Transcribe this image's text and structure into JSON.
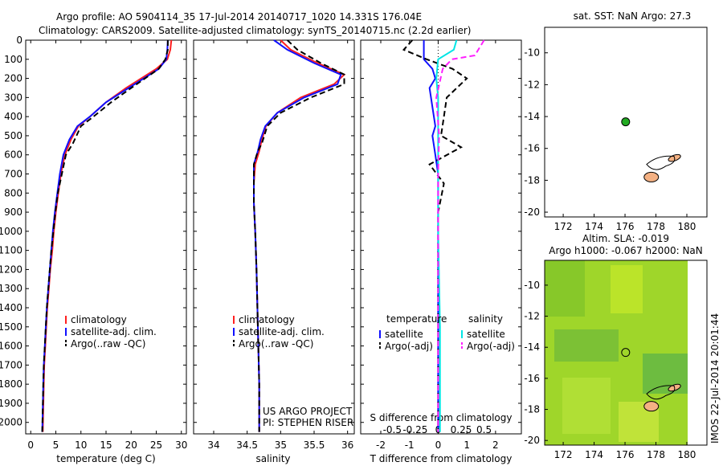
{
  "header": {
    "line1": "Argo profile: AO 5904114_35 17-Jul-2014 20140717_1020 14.331S 176.04E",
    "line2": "Climatology: CARS2009. Satellite-adjusted climatology: synTS_20140715.nc (2.2d earlier)"
  },
  "credits": {
    "project": "US ARGO PROJECT",
    "pi": "PI: STEPHEN RISER"
  },
  "stamp": "IMOS 22-Jul-2014 20:01:44",
  "map_top": {
    "title": "sat. SST: NaN Argo: 27.3"
  },
  "map_bottom": {
    "title1": "Altim. SLA: -0.019",
    "title2": "Argo h1000: -0.067 h2000: NaN"
  },
  "colors": {
    "climatology": "#ff2020",
    "satellite": "#1010ff",
    "argo": "#000000",
    "sal_satellite": "#00e5e5",
    "sal_argo": "#ff20ff",
    "marker": "#22aa22",
    "land": "#f4b183"
  },
  "chart_data": [
    {
      "type": "line",
      "xlabel": "temperature (deg C)",
      "ylim": [
        2060,
        0
      ],
      "xlim": [
        -1,
        31
      ],
      "xticks": [
        0,
        5,
        10,
        15,
        20,
        25,
        30
      ],
      "yticks": [
        0,
        100,
        200,
        300,
        400,
        500,
        600,
        700,
        800,
        900,
        1000,
        1100,
        1200,
        1300,
        1400,
        1500,
        1600,
        1700,
        1800,
        1900,
        2000
      ],
      "legend": [
        "climatology",
        "satellite-adj. clim.",
        "Argo(..raw -QC)"
      ],
      "series": [
        {
          "name": "climatology",
          "x": [
            28,
            27.8,
            27.2,
            25,
            19,
            15,
            11.8,
            9.5,
            8,
            6.8,
            6,
            5.5,
            5,
            4.6,
            4.3,
            3.9,
            3.6,
            3.3,
            3.1,
            2.9,
            2.7,
            2.6,
            2.4
          ],
          "y": [
            0,
            50,
            100,
            150,
            250,
            325,
            400,
            450,
            520,
            600,
            700,
            800,
            900,
            1000,
            1100,
            1200,
            1300,
            1400,
            1500,
            1600,
            1700,
            1800,
            2050
          ]
        },
        {
          "name": "satellite-adj. clim.",
          "x": [
            27.3,
            27.2,
            27,
            25.5,
            19.5,
            15,
            11.8,
            9.3,
            7.7,
            6.5,
            5.8,
            5.3,
            4.8,
            4.4,
            4.1,
            3.8,
            3.5,
            3.2,
            3.0,
            2.8,
            2.6,
            2.5,
            2.3
          ],
          "y": [
            0,
            50,
            100,
            150,
            250,
            325,
            400,
            450,
            520,
            600,
            700,
            800,
            900,
            1000,
            1100,
            1200,
            1300,
            1400,
            1500,
            1600,
            1700,
            1800,
            2050
          ]
        },
        {
          "name": "Argo(..raw -QC)",
          "x": [
            27.3,
            27.3,
            26.8,
            25.5,
            20,
            16,
            12.5,
            10,
            8.4,
            7.0,
            6.2,
            5.4,
            4.9,
            4.5,
            4.1,
            3.8,
            3.5,
            3.2,
            3.0,
            2.8,
            2.6,
            2.5,
            2.3
          ],
          "y": [
            0,
            50,
            100,
            150,
            250,
            325,
            400,
            450,
            540,
            600,
            700,
            800,
            900,
            1000,
            1100,
            1200,
            1300,
            1400,
            1500,
            1600,
            1700,
            1800,
            2050
          ]
        }
      ]
    },
    {
      "type": "line",
      "xlabel": "salinity",
      "ylim": [
        2060,
        0
      ],
      "xlim": [
        33.7,
        36.1
      ],
      "xticks": [
        34,
        34.5,
        35,
        35.5,
        36
      ],
      "legend": [
        "climatology",
        "satellite-adj. clim.",
        "Argo(..raw -QC)"
      ],
      "series": [
        {
          "name": "climatology",
          "x": [
            35.0,
            35.15,
            35.55,
            35.95,
            35.8,
            35.3,
            34.95,
            34.78,
            34.72,
            34.68,
            34.62,
            34.6,
            34.6,
            34.62,
            34.64,
            34.66,
            34.68,
            34.68
          ],
          "y": [
            0,
            50,
            120,
            180,
            230,
            300,
            380,
            450,
            520,
            580,
            650,
            750,
            850,
            1000,
            1200,
            1500,
            1800,
            2050
          ]
        },
        {
          "name": "satellite-adj. clim.",
          "x": [
            34.9,
            35.1,
            35.5,
            35.9,
            35.85,
            35.35,
            34.95,
            34.77,
            34.7,
            34.66,
            34.6,
            34.6,
            34.6,
            34.62,
            34.64,
            34.66,
            34.68,
            34.68
          ],
          "y": [
            0,
            50,
            120,
            180,
            230,
            300,
            380,
            450,
            520,
            580,
            650,
            750,
            850,
            1000,
            1200,
            1500,
            1800,
            2050
          ]
        },
        {
          "name": "Argo(..raw -QC)",
          "x": [
            35.1,
            35.25,
            35.6,
            35.95,
            35.95,
            35.45,
            35.0,
            34.8,
            34.72,
            34.66,
            34.6,
            34.6,
            34.6,
            34.62,
            34.64,
            34.66,
            34.68,
            34.68
          ],
          "y": [
            0,
            50,
            120,
            180,
            230,
            300,
            380,
            450,
            540,
            580,
            650,
            750,
            850,
            1000,
            1200,
            1500,
            1800,
            2050
          ]
        }
      ]
    },
    {
      "type": "line",
      "xlabel": "T difference from climatology",
      "xlabel_top": "S difference from climatology",
      "ylim": [
        2060,
        0
      ],
      "xlim": [
        -2.7,
        2.9
      ],
      "xticks": [
        -2,
        -1,
        0,
        1,
        2
      ],
      "xticks_top": [
        "-0.5",
        "-0.25",
        "0",
        "0.25",
        "0.5"
      ],
      "legend_headers": [
        "temperature",
        "salinity"
      ],
      "legend": [
        "satellite",
        "Argo(-adj)",
        "satellite",
        "Argo(-adj)"
      ],
      "series": [
        {
          "name": "satellite",
          "quantity": "temperature",
          "x": [
            -0.5,
            -0.5,
            -0.2,
            -0.1,
            -0.3,
            -0.2,
            -0.1,
            -0.2,
            -0.1,
            0,
            0,
            0,
            0,
            0
          ],
          "y": [
            0,
            100,
            150,
            200,
            250,
            350,
            450,
            500,
            600,
            700,
            900,
            1200,
            1600,
            2050
          ]
        },
        {
          "name": "Argo(-adj)",
          "quantity": "temperature",
          "x": [
            -0.9,
            -1.2,
            -0.4,
            0.5,
            1.0,
            0.3,
            0.2,
            0.1,
            0.8,
            -0.3,
            0.2,
            0,
            0,
            0,
            0
          ],
          "y": [
            0,
            50,
            100,
            150,
            200,
            300,
            400,
            500,
            560,
            650,
            750,
            900,
            1200,
            1600,
            2050
          ]
        },
        {
          "name": "satellite",
          "quantity": "salinity",
          "x": [
            0.2,
            0.17,
            0.0,
            -0.02,
            0,
            0,
            0,
            0,
            0.02,
            0.02
          ],
          "y": [
            0,
            50,
            100,
            200,
            300,
            500,
            700,
            1000,
            1500,
            2050
          ]
        },
        {
          "name": "Argo(-adj)",
          "quantity": "salinity",
          "x": [
            0.5,
            0.4,
            0.15,
            0.05,
            -0.02,
            0.01,
            0,
            0,
            0,
            0
          ],
          "y": [
            0,
            80,
            100,
            150,
            300,
            500,
            700,
            1000,
            1500,
            2050
          ]
        }
      ]
    }
  ],
  "maps": [
    {
      "xticks": [
        172,
        174,
        176,
        178,
        180
      ],
      "yticks": [
        -10,
        -12,
        -14,
        -16,
        -18,
        -20
      ],
      "marker": {
        "lon": 176.04,
        "lat": -14.331
      }
    },
    {
      "xticks": [
        172,
        174,
        176,
        178,
        180
      ],
      "yticks": [
        -10,
        -12,
        -14,
        -16,
        -18,
        -20
      ],
      "marker": {
        "lon": 176.04,
        "lat": -14.331
      }
    }
  ]
}
